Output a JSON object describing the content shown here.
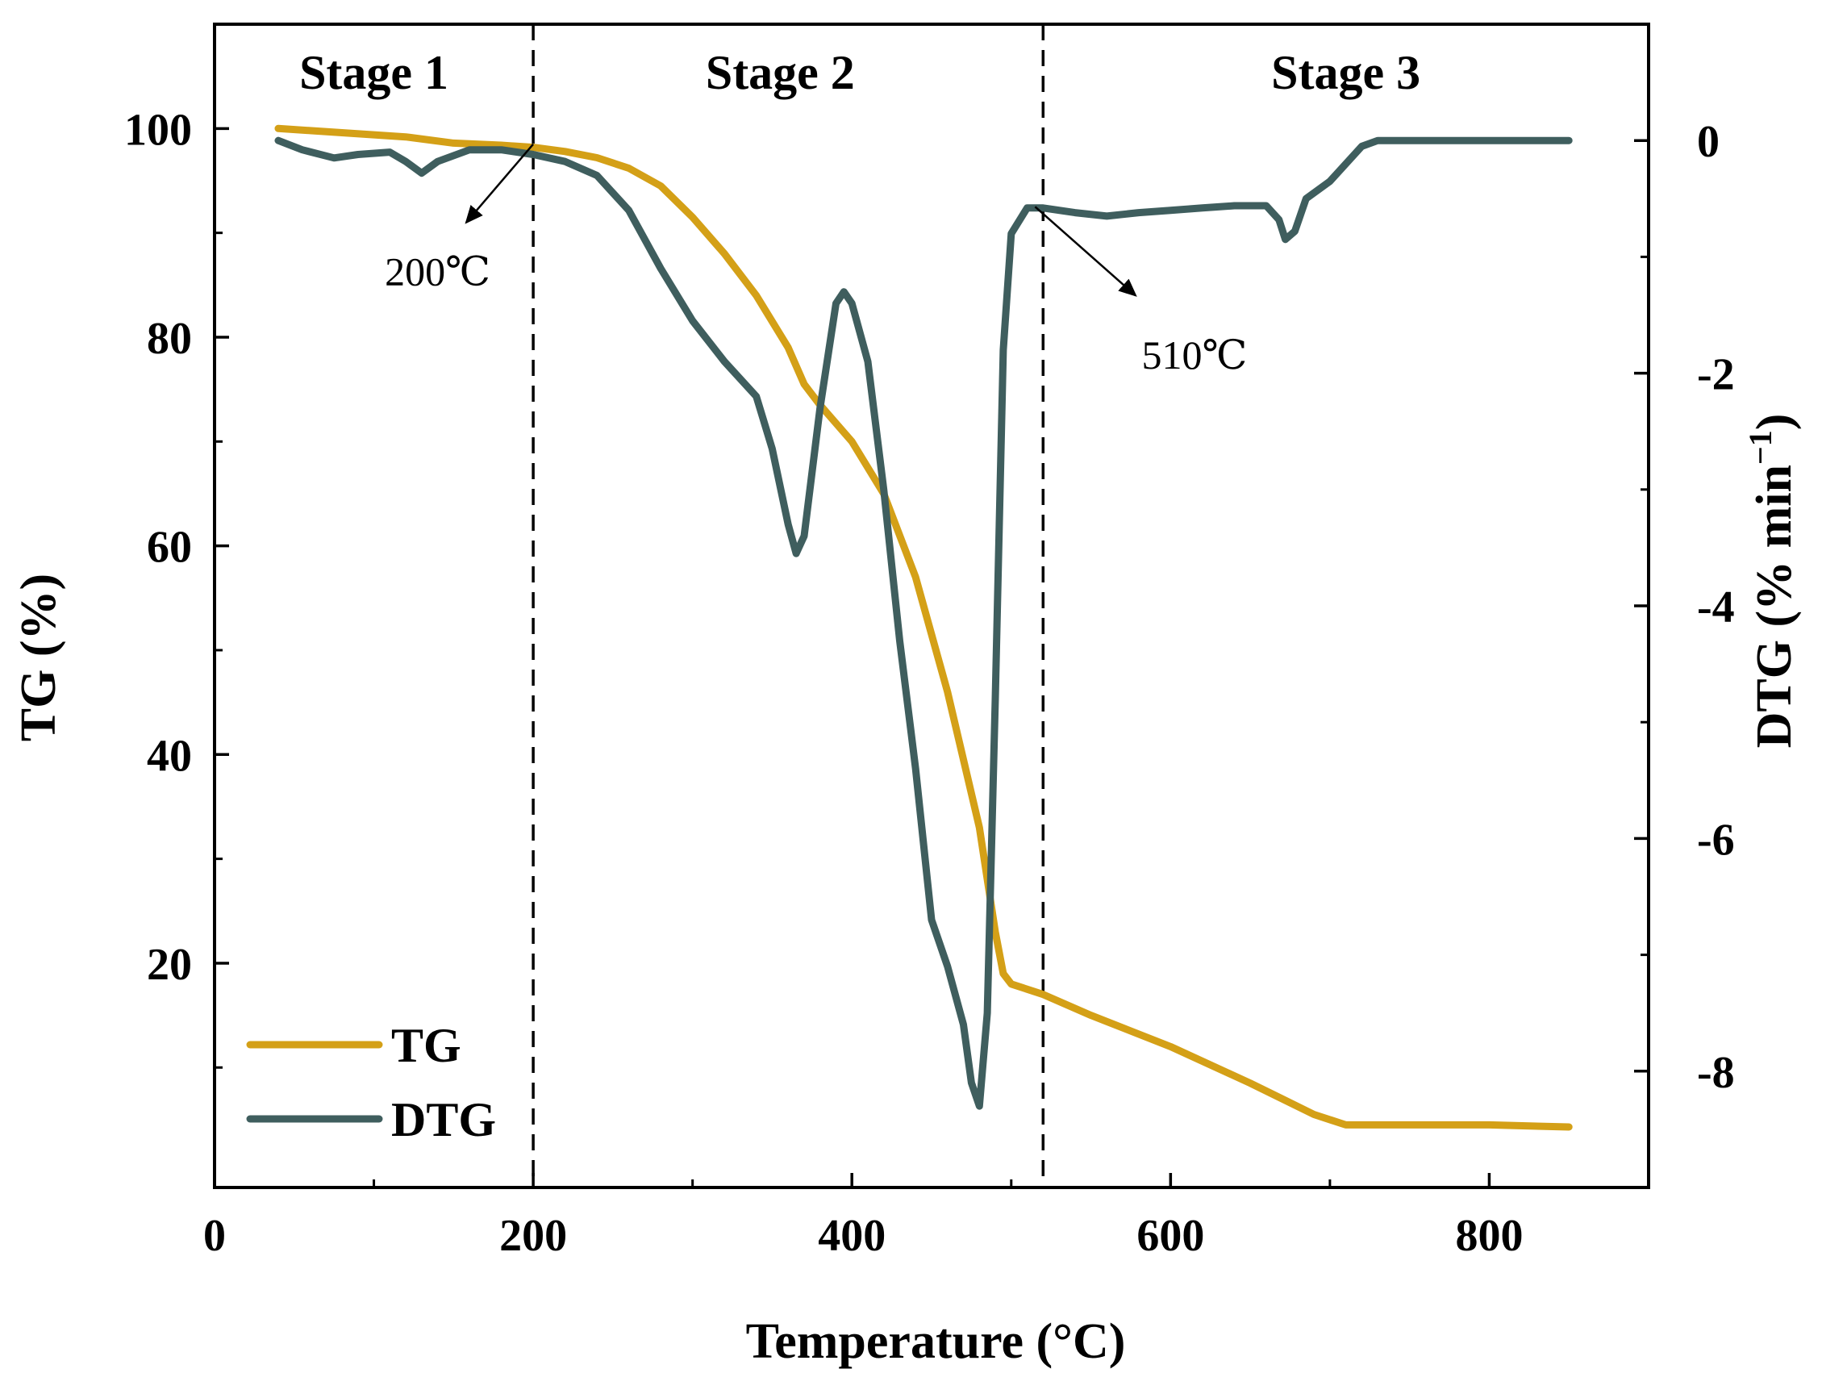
{
  "colors": {
    "tg": "#D4A017",
    "dtg": "#3F5E5E",
    "axis": "#000000"
  },
  "chart_data": {
    "type": "line",
    "xlabel": "Temperature (°C)",
    "ylabel_left": "TG (%)",
    "ylabel_right_main": "DTG (% min",
    "ylabel_right_sup": "−1",
    "ylabel_right_tail": ")",
    "xlim": [
      0,
      900
    ],
    "ylim_left": [
      -1.5,
      110
    ],
    "ylim_right": [
      -9.0,
      1.0
    ],
    "x_ticks": [
      0,
      200,
      400,
      600,
      800
    ],
    "x_tick_labels": [
      "0",
      "200",
      "400",
      "600",
      "800"
    ],
    "y_left_ticks": [
      20,
      40,
      60,
      80,
      100
    ],
    "y_left_tick_labels": [
      "20",
      "40",
      "60",
      "80",
      "100"
    ],
    "y_right_ticks": [
      0,
      -2,
      -4,
      -6,
      -8
    ],
    "y_right_tick_labels": [
      "0",
      "-2",
      "-4",
      "-6",
      "-8"
    ],
    "stage_boundaries": [
      200,
      520
    ],
    "stage_labels": [
      {
        "text": "Stage 1",
        "x": 100
      },
      {
        "text": "Stage 2",
        "x": 355
      },
      {
        "text": "Stage 3",
        "x": 710
      }
    ],
    "annotations": [
      {
        "text": "200℃",
        "x_from": 200,
        "y_from": 98.5,
        "x_to": 158,
        "y_to": 91,
        "text_x": 140,
        "text_y": 85
      },
      {
        "text": "510℃",
        "x_from": 515,
        "y_from": 92.5,
        "x_to": 578,
        "y_to": 84,
        "text_x": 615,
        "text_y": 77
      }
    ],
    "series": [
      {
        "name": "TG",
        "axis": "left",
        "x": [
          40,
          60,
          80,
          100,
          120,
          150,
          180,
          200,
          220,
          240,
          260,
          280,
          300,
          320,
          340,
          360,
          370,
          380,
          400,
          420,
          440,
          460,
          480,
          490,
          495,
          500,
          520,
          550,
          600,
          650,
          670,
          690,
          710,
          750,
          800,
          850
        ],
        "y": [
          100.0,
          99.8,
          99.6,
          99.4,
          99.2,
          98.6,
          98.4,
          98.2,
          97.8,
          97.2,
          96.2,
          94.5,
          91.5,
          88.0,
          84.0,
          79.0,
          75.5,
          73.5,
          70.0,
          65.0,
          57.0,
          46.0,
          33.0,
          23.0,
          19.0,
          18.0,
          17.0,
          15.0,
          12.0,
          8.5,
          7.0,
          5.5,
          4.5,
          4.5,
          4.5,
          4.3
        ]
      },
      {
        "name": "DTG",
        "axis": "right",
        "x": [
          40,
          55,
          75,
          90,
          110,
          120,
          130,
          140,
          160,
          180,
          200,
          220,
          240,
          260,
          280,
          300,
          320,
          340,
          350,
          360,
          365,
          370,
          380,
          390,
          395,
          400,
          410,
          420,
          430,
          440,
          450,
          460,
          470,
          475,
          480,
          485,
          490,
          495,
          500,
          510,
          520,
          540,
          560,
          580,
          600,
          620,
          640,
          660,
          668,
          672,
          678,
          685,
          700,
          720,
          730,
          750,
          800,
          850
        ],
        "y": [
          0.0,
          -0.08,
          -0.15,
          -0.12,
          -0.1,
          -0.18,
          -0.28,
          -0.18,
          -0.08,
          -0.08,
          -0.12,
          -0.18,
          -0.3,
          -0.6,
          -1.1,
          -1.55,
          -1.9,
          -2.2,
          -2.65,
          -3.3,
          -3.55,
          -3.4,
          -2.3,
          -1.4,
          -1.3,
          -1.4,
          -1.9,
          -3.0,
          -4.3,
          -5.4,
          -6.7,
          -7.1,
          -7.6,
          -8.1,
          -8.3,
          -7.5,
          -4.8,
          -1.8,
          -0.8,
          -0.58,
          -0.58,
          -0.62,
          -0.65,
          -0.62,
          -0.6,
          -0.58,
          -0.56,
          -0.56,
          -0.68,
          -0.85,
          -0.78,
          -0.5,
          -0.35,
          -0.05,
          0.0,
          0.0,
          0.0,
          0.0
        ]
      }
    ],
    "legend": {
      "position": "bottom-left",
      "entries": [
        "TG",
        "DTG"
      ]
    }
  }
}
